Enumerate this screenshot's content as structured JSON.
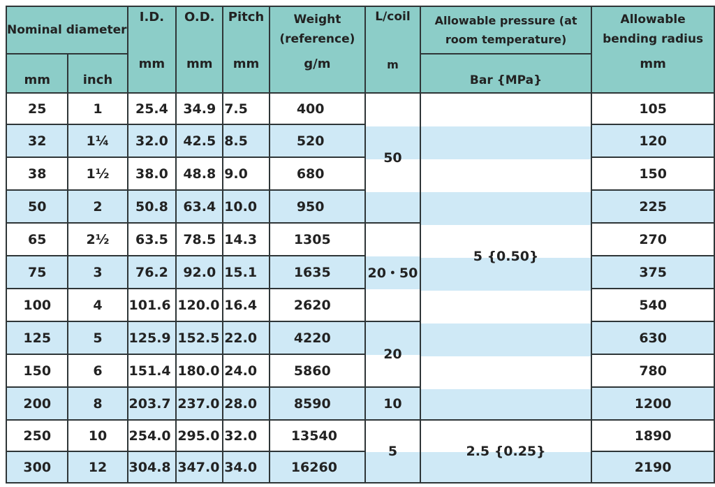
{
  "header": {
    "nominal_diameter": "Nominal diameter",
    "id": "I.D.",
    "od": "O.D.",
    "pitch": "Pitch",
    "weight": "Weight (reference)",
    "l_coil": "L/coil",
    "allowable_pressure": "Allowable pressure (at room temperature)",
    "allowable_bending_radius": "Allowable bending radius"
  },
  "units": {
    "nominal_mm": "mm",
    "nominal_inch": "inch",
    "id": "mm",
    "od": "mm",
    "pitch": "mm",
    "weight": "g/m",
    "l_coil": "m",
    "pressure": "Bar {MPa}",
    "bending": "mm"
  },
  "rows": [
    {
      "mm": "25",
      "inch": "1",
      "id": "25.4",
      "od": "34.9",
      "pitch": "7.5",
      "weight": "400",
      "radius": "105"
    },
    {
      "mm": "32",
      "inch": "1¼",
      "id": "32.0",
      "od": "42.5",
      "pitch": "8.5",
      "weight": "520",
      "radius": "120"
    },
    {
      "mm": "38",
      "inch": "1½",
      "id": "38.0",
      "od": "48.8",
      "pitch": "9.0",
      "weight": "680",
      "radius": "150"
    },
    {
      "mm": "50",
      "inch": "2",
      "id": "50.8",
      "od": "63.4",
      "pitch": "10.0",
      "weight": "950",
      "radius": "225"
    },
    {
      "mm": "65",
      "inch": "2½",
      "id": "63.5",
      "od": "78.5",
      "pitch": "14.3",
      "weight": "1305",
      "radius": "270"
    },
    {
      "mm": "75",
      "inch": "3",
      "id": "76.2",
      "od": "92.0",
      "pitch": "15.1",
      "weight": "1635",
      "radius": "375"
    },
    {
      "mm": "100",
      "inch": "4",
      "id": "101.6",
      "od": "120.0",
      "pitch": "16.4",
      "weight": "2620",
      "radius": "540"
    },
    {
      "mm": "125",
      "inch": "5",
      "id": "125.9",
      "od": "152.5",
      "pitch": "22.0",
      "weight": "4220",
      "radius": "630"
    },
    {
      "mm": "150",
      "inch": "6",
      "id": "151.4",
      "od": "180.0",
      "pitch": "24.0",
      "weight": "5860",
      "radius": "780"
    },
    {
      "mm": "200",
      "inch": "8",
      "id": "203.7",
      "od": "237.0",
      "pitch": "28.0",
      "weight": "8590",
      "radius": "1200"
    },
    {
      "mm": "250",
      "inch": "10",
      "id": "254.0",
      "od": "295.0",
      "pitch": "32.0",
      "weight": "13540",
      "radius": "1890"
    },
    {
      "mm": "300",
      "inch": "12",
      "id": "304.8",
      "od": "347.0",
      "pitch": "34.0",
      "weight": "16260",
      "radius": "2190"
    }
  ],
  "l_coil_groups": [
    "50",
    "20・50",
    "20",
    "10",
    "5"
  ],
  "pressure_groups": [
    "5 {0.50}",
    "2.5 {0.25}"
  ],
  "colors": {
    "header_bg": "#8ccdc8",
    "stripe_bg": "#cfe9f6",
    "border": "#2e3537"
  }
}
